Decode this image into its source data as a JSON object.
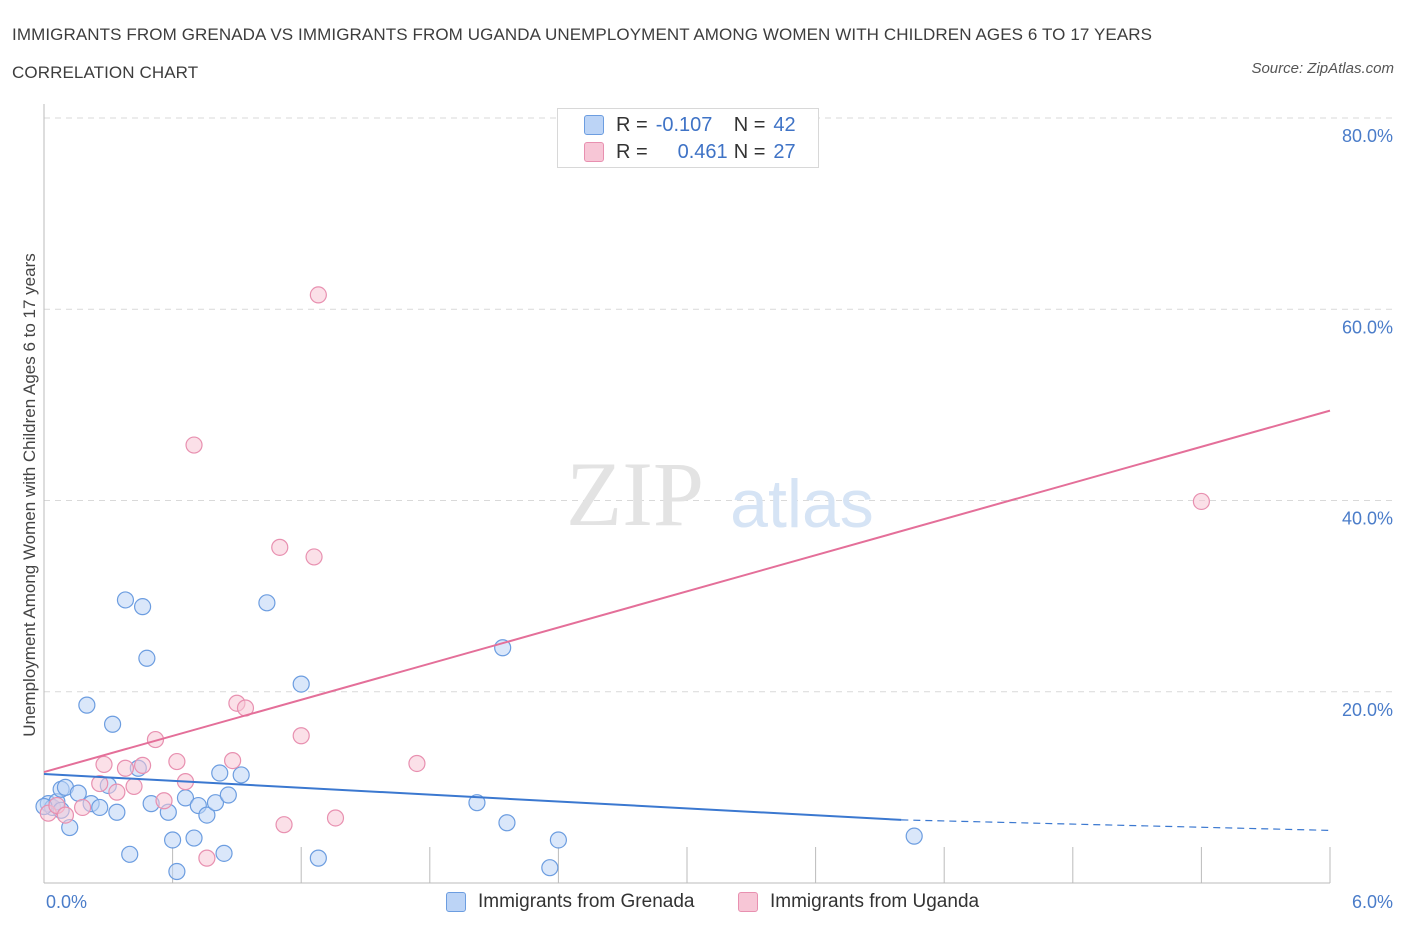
{
  "header": {
    "title": "IMMIGRANTS FROM GRENADA VS IMMIGRANTS FROM UGANDA UNEMPLOYMENT AMONG WOMEN WITH CHILDREN AGES 6 TO 17 YEARS CORRELATION CHART",
    "source": "Source: ZipAtlas.com"
  },
  "watermark": {
    "zip": "ZIP",
    "atlas": "atlas"
  },
  "colors": {
    "blue": "#3b78d0",
    "blue_fill": "#bcd4f6",
    "blue_stroke": "#6c9de0",
    "pink": "#e46f99",
    "pink_fill": "#f7c6d6",
    "pink_stroke": "#e890b0",
    "tick": "#4a7cc9",
    "grid": "#d9d9d9"
  },
  "legend": {
    "rows": [
      {
        "r_label": "R =",
        "r_value": "-0.107",
        "n_label": "N =",
        "n_value": "42"
      },
      {
        "r_label": "R =",
        "r_value": "0.461",
        "n_label": "N =",
        "n_value": "27"
      }
    ]
  },
  "bottom_legend": {
    "grenada": "Immigrants from Grenada",
    "uganda": "Immigrants from Uganda"
  },
  "chart_data": {
    "type": "scatter",
    "title": "IMMIGRANTS FROM GRENADA VS IMMIGRANTS FROM UGANDA UNEMPLOYMENT AMONG WOMEN WITH CHILDREN AGES 6 TO 17 YEARS CORRELATION CHART",
    "xlabel": "",
    "ylabel": "Unemployment Among Women with Children Ages 6 to 17 years",
    "xlim": [
      0,
      6
    ],
    "ylim": [
      0,
      80
    ],
    "x_tick_labels": [
      "0.0%",
      "6.0%"
    ],
    "y_ticks": [
      20,
      40,
      60,
      80
    ],
    "y_tick_labels": [
      "20.0%",
      "40.0%",
      "60.0%",
      "80.0%"
    ],
    "grid": true,
    "legend_position": "top-center",
    "series": [
      {
        "name": "Immigrants from Grenada",
        "R": -0.107,
        "N": 42,
        "trend": {
          "x0": 0,
          "y0": 11.4,
          "x1": 4.0,
          "y1": 6.6,
          "dashed_to_x": 6.0,
          "dashed_to_y": 5.5
        },
        "points": [
          [
            0.02,
            8.3
          ],
          [
            0.04,
            7.9
          ],
          [
            0.06,
            8.5
          ],
          [
            0.08,
            7.6
          ],
          [
            0.08,
            9.8
          ],
          [
            0.1,
            10.0
          ],
          [
            0.12,
            5.8
          ],
          [
            0.16,
            9.4
          ],
          [
            0.2,
            18.6
          ],
          [
            0.22,
            8.3
          ],
          [
            0.26,
            7.9
          ],
          [
            0.3,
            10.2
          ],
          [
            0.32,
            16.6
          ],
          [
            0.34,
            7.4
          ],
          [
            0.38,
            29.6
          ],
          [
            0.4,
            3.0
          ],
          [
            0.44,
            12.0
          ],
          [
            0.46,
            28.9
          ],
          [
            0.48,
            23.5
          ],
          [
            0.5,
            8.3
          ],
          [
            0.58,
            7.4
          ],
          [
            0.6,
            4.5
          ],
          [
            0.62,
            1.2
          ],
          [
            0.66,
            8.9
          ],
          [
            0.7,
            4.7
          ],
          [
            0.72,
            8.1
          ],
          [
            0.76,
            7.1
          ],
          [
            0.8,
            8.4
          ],
          [
            0.82,
            11.5
          ],
          [
            0.84,
            3.1
          ],
          [
            0.86,
            9.2
          ],
          [
            0.92,
            11.3
          ],
          [
            1.04,
            29.3
          ],
          [
            1.2,
            20.8
          ],
          [
            1.28,
            2.6
          ],
          [
            2.02,
            8.4
          ],
          [
            2.14,
            24.6
          ],
          [
            2.16,
            6.3
          ],
          [
            2.36,
            1.6
          ],
          [
            2.4,
            4.5
          ],
          [
            4.06,
            4.9
          ],
          [
            0.0,
            8.0
          ]
        ]
      },
      {
        "name": "Immigrants from Uganda",
        "R": 0.461,
        "N": 27,
        "trend": {
          "x0": 0,
          "y0": 11.6,
          "x1": 6.0,
          "y1": 49.4
        },
        "points": [
          [
            0.02,
            7.3
          ],
          [
            0.06,
            8.1
          ],
          [
            0.1,
            7.1
          ],
          [
            0.18,
            7.9
          ],
          [
            0.26,
            10.4
          ],
          [
            0.28,
            12.4
          ],
          [
            0.34,
            9.5
          ],
          [
            0.38,
            12.0
          ],
          [
            0.42,
            10.1
          ],
          [
            0.46,
            12.3
          ],
          [
            0.52,
            15.0
          ],
          [
            0.56,
            8.6
          ],
          [
            0.62,
            12.7
          ],
          [
            0.66,
            10.6
          ],
          [
            0.7,
            45.8
          ],
          [
            0.76,
            2.6
          ],
          [
            0.88,
            12.8
          ],
          [
            0.9,
            18.8
          ],
          [
            0.94,
            18.3
          ],
          [
            1.1,
            35.1
          ],
          [
            1.12,
            6.1
          ],
          [
            1.2,
            15.4
          ],
          [
            1.26,
            34.1
          ],
          [
            1.28,
            61.5
          ],
          [
            1.36,
            6.8
          ],
          [
            1.74,
            12.5
          ],
          [
            5.4,
            39.9
          ]
        ]
      }
    ]
  }
}
